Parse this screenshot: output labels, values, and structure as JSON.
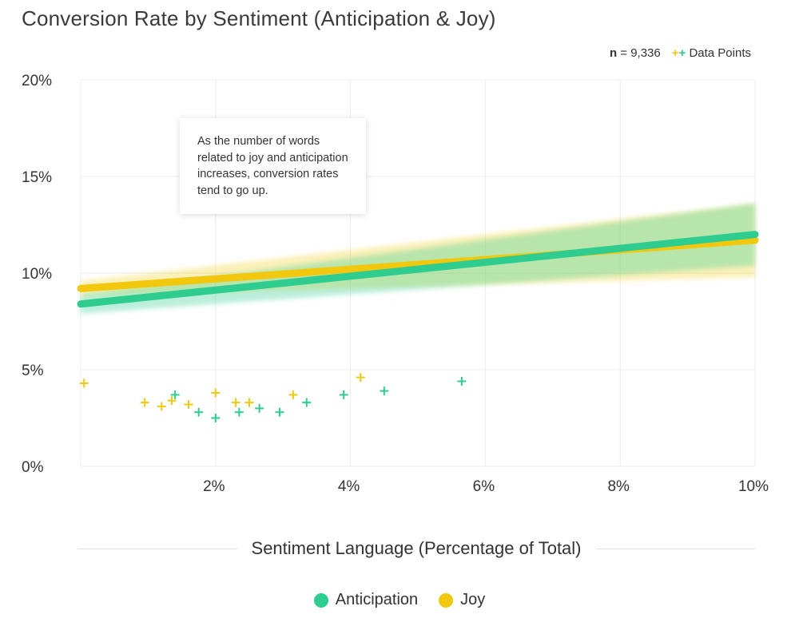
{
  "title": "Conversion Rate by Sentiment (Anticipation & Joy)",
  "meta": {
    "n_label": "n",
    "n_value": "= 9,336",
    "marks": "+",
    "points_label": "Data Points"
  },
  "annotation": "As the number of words related to joy and anticipation increases, conversion rates tend to go up.",
  "xlabel": "Sentiment Language (Percentage of Total)",
  "legend": [
    {
      "name": "Anticipation",
      "color": "#2ecc8f"
    },
    {
      "name": "Joy",
      "color": "#f2c80f"
    }
  ],
  "chart_data": {
    "type": "scatter",
    "xlabel": "Sentiment Language (Percentage of Total)",
    "xlim": [
      0,
      10
    ],
    "ylim": [
      0,
      20
    ],
    "x_ticks": [
      2,
      4,
      6,
      8,
      10
    ],
    "x_tick_labels": [
      "2%",
      "4%",
      "6%",
      "8%",
      "10%"
    ],
    "y_ticks": [
      0,
      5,
      10,
      15,
      20
    ],
    "y_tick_labels": [
      "0%",
      "5%",
      "10%",
      "15%",
      "20%"
    ],
    "grid": true,
    "series": [
      {
        "name": "Anticipation",
        "color": "#2ecc8f",
        "points": [
          [
            1.4,
            3.7
          ],
          [
            1.75,
            2.8
          ],
          [
            2.0,
            2.5
          ],
          [
            2.35,
            2.8
          ],
          [
            2.65,
            3.0
          ],
          [
            2.95,
            2.8
          ],
          [
            3.35,
            3.3
          ],
          [
            3.9,
            3.7
          ],
          [
            4.5,
            3.9
          ],
          [
            5.65,
            4.4
          ]
        ],
        "trend": {
          "x": [
            0,
            10
          ],
          "y": [
            8.4,
            12.0
          ],
          "band_start": 0.5,
          "band_end": 1.6
        }
      },
      {
        "name": "Joy",
        "color": "#f2c80f",
        "points": [
          [
            0.05,
            4.3
          ],
          [
            0.95,
            3.3
          ],
          [
            1.2,
            3.1
          ],
          [
            1.35,
            3.4
          ],
          [
            1.6,
            3.2
          ],
          [
            2.0,
            3.8
          ],
          [
            2.3,
            3.3
          ],
          [
            2.5,
            3.3
          ],
          [
            3.15,
            3.7
          ],
          [
            4.15,
            4.6
          ]
        ],
        "trend": {
          "x": [
            0,
            10
          ],
          "y": [
            9.2,
            11.7
          ],
          "band_start": 0.4,
          "band_end": 1.9
        }
      }
    ]
  }
}
